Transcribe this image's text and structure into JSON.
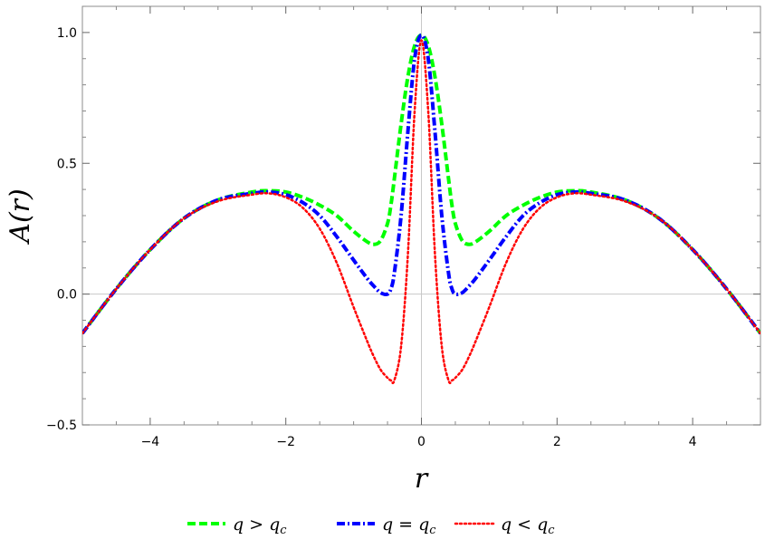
{
  "chart_data": {
    "type": "line",
    "xlabel": "r",
    "ylabel": "A(r)",
    "xlim": [
      -5,
      5
    ],
    "ylim": [
      -0.5,
      1.1
    ],
    "x_ticks": [
      -4,
      -2,
      0,
      2,
      4
    ],
    "x_tick_labels": [
      "−4",
      "−2",
      "0",
      "2",
      "4"
    ],
    "y_ticks": [
      -0.5,
      0.0,
      0.5,
      1.0
    ],
    "y_tick_labels": [
      "−0.5",
      "0.0",
      "0.5",
      "1.0"
    ],
    "grid": false,
    "zero_lines": true,
    "legend_position": "bottom",
    "x": [
      -5,
      -4.5,
      -4,
      -3.5,
      -3,
      -2.5,
      -2.25,
      -2,
      -1.75,
      -1.5,
      -1.25,
      -1,
      -0.8,
      -0.7,
      -0.6,
      -0.5,
      -0.45,
      -0.4,
      -0.3,
      -0.2,
      -0.1,
      0,
      0.1,
      0.2,
      0.3,
      0.4,
      0.45,
      0.5,
      0.6,
      0.7,
      0.8,
      1,
      1.25,
      1.5,
      1.75,
      2,
      2.25,
      2.5,
      3,
      3.5,
      4,
      4.5,
      5
    ],
    "series": [
      {
        "name": "q > q_c",
        "legend_left": "q",
        "legend_op": ">",
        "legend_right": "q",
        "legend_sub": "c",
        "color": "#00ff00",
        "style": "dashed",
        "values": [
          -0.15,
          0.02,
          0.17,
          0.29,
          0.36,
          0.39,
          0.395,
          0.39,
          0.37,
          0.34,
          0.3,
          0.24,
          0.2,
          0.19,
          0.205,
          0.27,
          0.34,
          0.44,
          0.65,
          0.83,
          0.95,
          0.99,
          0.95,
          0.83,
          0.65,
          0.44,
          0.34,
          0.27,
          0.205,
          0.19,
          0.2,
          0.24,
          0.3,
          0.34,
          0.37,
          0.39,
          0.395,
          0.39,
          0.36,
          0.29,
          0.17,
          0.02,
          -0.15
        ]
      },
      {
        "name": "q = q_c",
        "legend_left": "q",
        "legend_op": "=",
        "legend_right": "q",
        "legend_sub": "c",
        "color": "#0000ff",
        "style": "dashdot",
        "values": [
          -0.15,
          0.02,
          0.17,
          0.29,
          0.36,
          0.385,
          0.39,
          0.38,
          0.35,
          0.3,
          0.22,
          0.13,
          0.06,
          0.03,
          0.005,
          0.0,
          0.02,
          0.08,
          0.3,
          0.62,
          0.9,
          0.99,
          0.9,
          0.62,
          0.3,
          0.08,
          0.02,
          0.0,
          0.005,
          0.03,
          0.06,
          0.13,
          0.22,
          0.3,
          0.35,
          0.38,
          0.39,
          0.385,
          0.36,
          0.29,
          0.17,
          0.02,
          -0.15
        ]
      },
      {
        "name": "q < q_c",
        "legend_left": "q",
        "legend_op": "<",
        "legend_right": "q",
        "legend_sub": "c",
        "color": "#ff0000",
        "style": "dotted",
        "values": [
          -0.15,
          0.02,
          0.17,
          0.29,
          0.355,
          0.38,
          0.385,
          0.37,
          0.33,
          0.25,
          0.12,
          -0.05,
          -0.18,
          -0.24,
          -0.29,
          -0.32,
          -0.33,
          -0.33,
          -0.2,
          0.15,
          0.7,
          0.97,
          0.7,
          0.15,
          -0.2,
          -0.33,
          -0.33,
          -0.32,
          -0.29,
          -0.24,
          -0.18,
          -0.05,
          0.12,
          0.25,
          0.33,
          0.37,
          0.385,
          0.38,
          0.355,
          0.29,
          0.17,
          0.02,
          -0.15
        ]
      }
    ]
  }
}
